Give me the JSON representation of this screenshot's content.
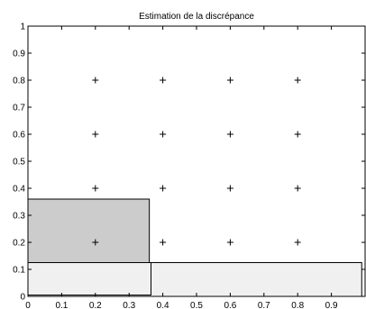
{
  "chart_data": {
    "type": "scatter",
    "title": "Estimation de la discrépance",
    "xlabel": "",
    "ylabel": "",
    "xlim": [
      0,
      1
    ],
    "ylim": [
      0,
      1
    ],
    "grid": false,
    "x_ticks": [
      "0",
      "0.1",
      "0.2",
      "0.3",
      "0.4",
      "0.5",
      "0.6",
      "0.7",
      "0.8",
      "0.9"
    ],
    "y_ticks": [
      "0",
      "0.1",
      "0.2",
      "0.3",
      "0.4",
      "0.5",
      "0.6",
      "0.7",
      "0.8",
      "0.9",
      "1"
    ],
    "points": [
      {
        "x": 0.2,
        "y": 0.8
      },
      {
        "x": 0.4,
        "y": 0.8
      },
      {
        "x": 0.6,
        "y": 0.8
      },
      {
        "x": 0.8,
        "y": 0.8
      },
      {
        "x": 0.2,
        "y": 0.6
      },
      {
        "x": 0.4,
        "y": 0.6
      },
      {
        "x": 0.6,
        "y": 0.6
      },
      {
        "x": 0.8,
        "y": 0.6
      },
      {
        "x": 0.2,
        "y": 0.4
      },
      {
        "x": 0.4,
        "y": 0.4
      },
      {
        "x": 0.6,
        "y": 0.4
      },
      {
        "x": 0.8,
        "y": 0.4
      },
      {
        "x": 0.2,
        "y": 0.2
      },
      {
        "x": 0.4,
        "y": 0.2
      },
      {
        "x": 0.6,
        "y": 0.2
      },
      {
        "x": 0.8,
        "y": 0.2
      }
    ],
    "marker": "+",
    "rectangles": [
      {
        "x0": 0.0,
        "y0": 0.0,
        "x1": 0.36,
        "y1": 0.36,
        "fill": "#cccccc"
      },
      {
        "x0": 0.0,
        "y0": 0.0,
        "x1": 0.99,
        "y1": 0.125,
        "fill": "#f0f0f0"
      },
      {
        "x0": 0.0,
        "y0": 0.005,
        "x1": 0.365,
        "y1": 0.125,
        "fill": "none"
      }
    ]
  }
}
